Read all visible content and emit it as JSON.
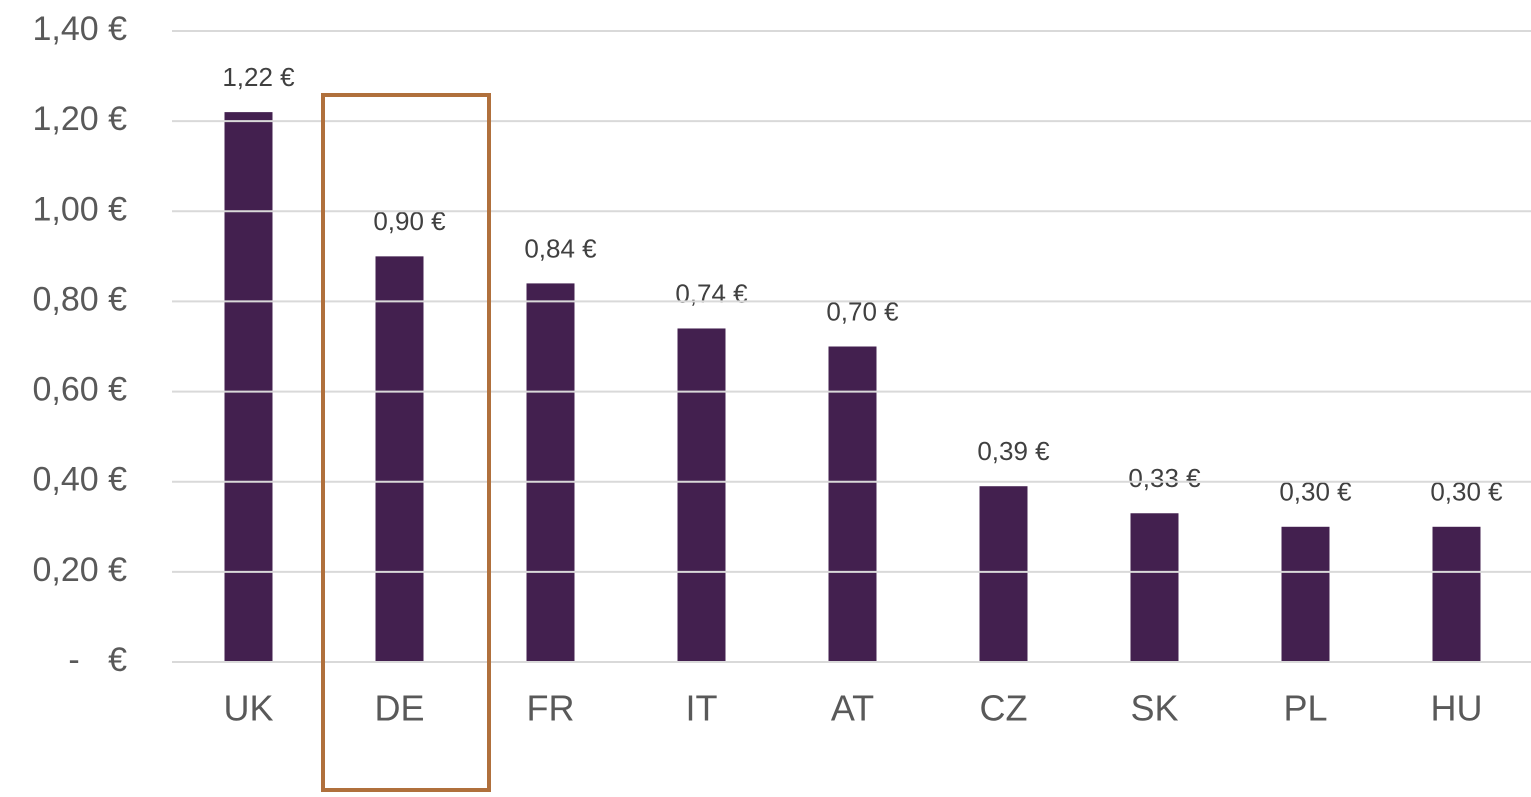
{
  "chart_data": {
    "type": "bar",
    "categories": [
      "UK",
      "DE",
      "FR",
      "IT",
      "AT",
      "CZ",
      "SK",
      "PL",
      "HU"
    ],
    "values": [
      1.22,
      0.9,
      0.84,
      0.74,
      0.7,
      0.39,
      0.33,
      0.3,
      0.3
    ],
    "value_labels": [
      "1,22 €",
      "0,90 €",
      "0,84 €",
      "0,74 €",
      "0,70 €",
      "0,39 €",
      "0,33 €",
      "0,30 €",
      "0,30 €"
    ],
    "color": "#43204f",
    "ylim": [
      0,
      1.4
    ],
    "yticks": [
      {
        "value": 0,
        "label": "-   €"
      },
      {
        "value": 0.2,
        "label": "0,20 €"
      },
      {
        "value": 0.4,
        "label": "0,40 €"
      },
      {
        "value": 0.6,
        "label": "0,60 €"
      },
      {
        "value": 0.8,
        "label": "0,80 €"
      },
      {
        "value": 1.0,
        "label": "1,00 €"
      },
      {
        "value": 1.2,
        "label": "1,20 €"
      },
      {
        "value": 1.4,
        "label": "1,40 €"
      }
    ],
    "grid": true
  }
}
